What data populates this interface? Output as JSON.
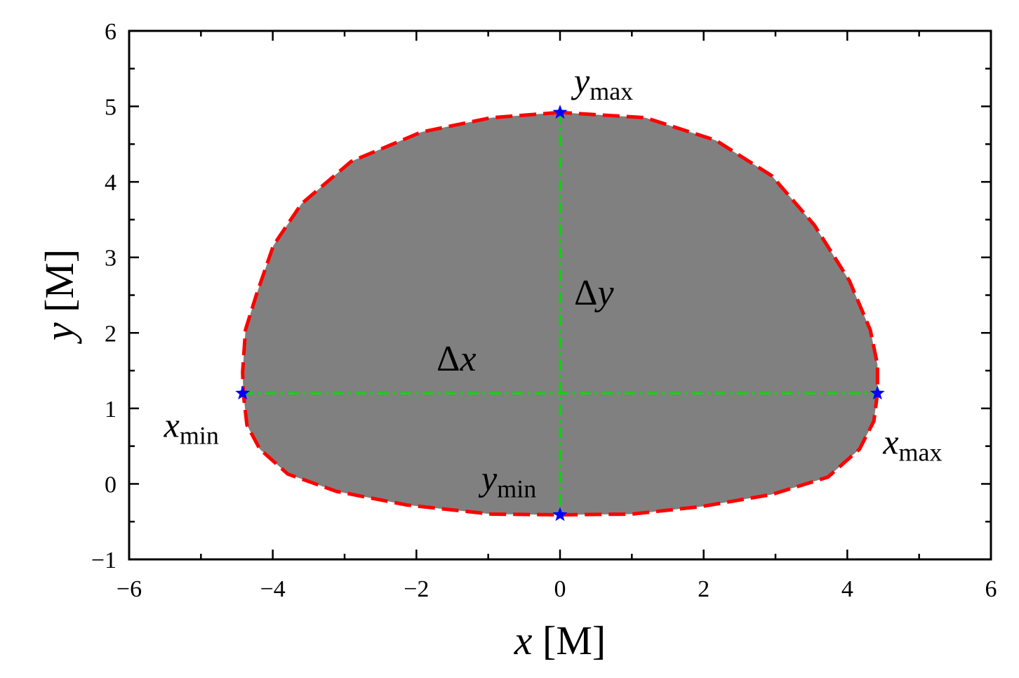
{
  "chart_data": {
    "type": "area",
    "x_label": {
      "symbol": "x",
      "unit": "[M]"
    },
    "y_label": {
      "symbol": "y",
      "unit": "[M]"
    },
    "xlim": [
      -6,
      6
    ],
    "ylim": [
      -1,
      6
    ],
    "xticks": [
      {
        "value": -6,
        "label": "−6"
      },
      {
        "value": -4,
        "label": "−4"
      },
      {
        "value": -2,
        "label": "−2"
      },
      0,
      2,
      4,
      6
    ],
    "yticks": [
      {
        "value": -1,
        "label": "−1"
      },
      0,
      1,
      2,
      3,
      4,
      5,
      6
    ],
    "xminor": [
      -5,
      -3,
      -1,
      1,
      3,
      5
    ],
    "yminor": [
      -0.5,
      0.5,
      1.5,
      2.5,
      3.5,
      4.5,
      5.5
    ],
    "series": [
      {
        "fill": "#808080",
        "color": "#ff0000",
        "x": [
          0,
          -0.96,
          -1.93,
          -2.91,
          -3.6,
          -3.99,
          -4.23,
          -4.38,
          -4.42,
          -4.41,
          -4.36,
          -4.18,
          -3.79,
          -3.11,
          -2.13,
          -0.96,
          0,
          1.0,
          1.97,
          2.95,
          3.73,
          4.17,
          4.37,
          4.42,
          4.42,
          4.32,
          4.03,
          3.54,
          2.95,
          2.17,
          1.19
        ],
        "values": [
          4.92,
          4.85,
          4.66,
          4.27,
          3.71,
          3.16,
          2.5,
          2.04,
          1.48,
          1.2,
          0.78,
          0.46,
          0.13,
          -0.1,
          -0.28,
          -0.4,
          -0.41,
          -0.4,
          -0.3,
          -0.14,
          0.09,
          0.46,
          0.83,
          1.2,
          1.58,
          2.04,
          2.69,
          3.43,
          4.08,
          4.55,
          4.85
        ]
      }
    ],
    "points": {
      "color": "#0000ff",
      "guide_color": "#00dd00",
      "x": [
        0,
        -4.42,
        0,
        4.42
      ],
      "values": [
        4.92,
        1.2,
        -0.41,
        1.2
      ],
      "labels": [
        {
          "symbol": "y",
          "sub": "max"
        },
        {
          "symbol": "x",
          "sub": "min"
        },
        {
          "symbol": "y",
          "sub": "min"
        },
        {
          "symbol": "x",
          "sub": "max"
        }
      ]
    },
    "annotations": [
      {
        "delta": "Δ",
        "symbol": "y"
      },
      {
        "delta": "Δ",
        "symbol": "x"
      }
    ]
  }
}
